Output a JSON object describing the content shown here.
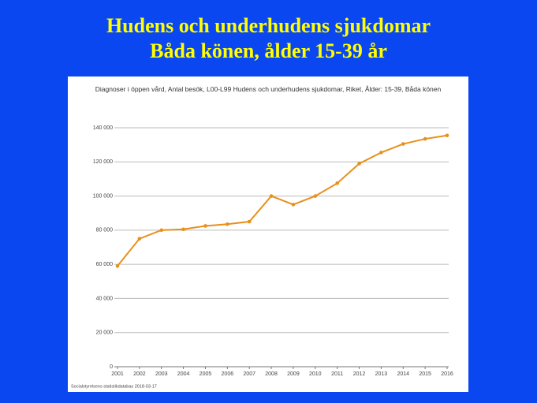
{
  "slide_title": [
    "Hudens och underhudens sjukdomar",
    "Båda könen, ålder 15-39 år"
  ],
  "chart_data": {
    "type": "line",
    "title": "Diagnoser i öppen vård, Antal besök, L00-L99 Hudens och underhudens sjukdomar, Riket, Ålder: 15-39, Båda könen",
    "source": "Socialstyrelsens statistikdatabas 2018-03-17",
    "categories": [
      "2001",
      "2002",
      "2003",
      "2004",
      "2005",
      "2006",
      "2007",
      "2008",
      "2009",
      "2010",
      "2011",
      "2012",
      "2013",
      "2014",
      "2015",
      "2016"
    ],
    "values": [
      59000,
      75000,
      80000,
      80500,
      82500,
      83500,
      85000,
      100000,
      95000,
      100000,
      107500,
      119000,
      125500,
      130500,
      133500,
      135500
    ],
    "color": "#e8901a",
    "ylim": [
      0,
      140000
    ],
    "yticks": [
      0,
      {
        "value": 20000,
        "label": "20 000"
      },
      {
        "value": 40000,
        "label": "40 000"
      },
      {
        "value": 60000,
        "label": "60 000"
      },
      {
        "value": 80000,
        "label": "80 000"
      },
      {
        "value": 100000,
        "label": "100 000"
      },
      {
        "value": 120000,
        "label": "120 000"
      },
      {
        "value": 140000,
        "label": "140 000"
      }
    ],
    "grid": true
  }
}
